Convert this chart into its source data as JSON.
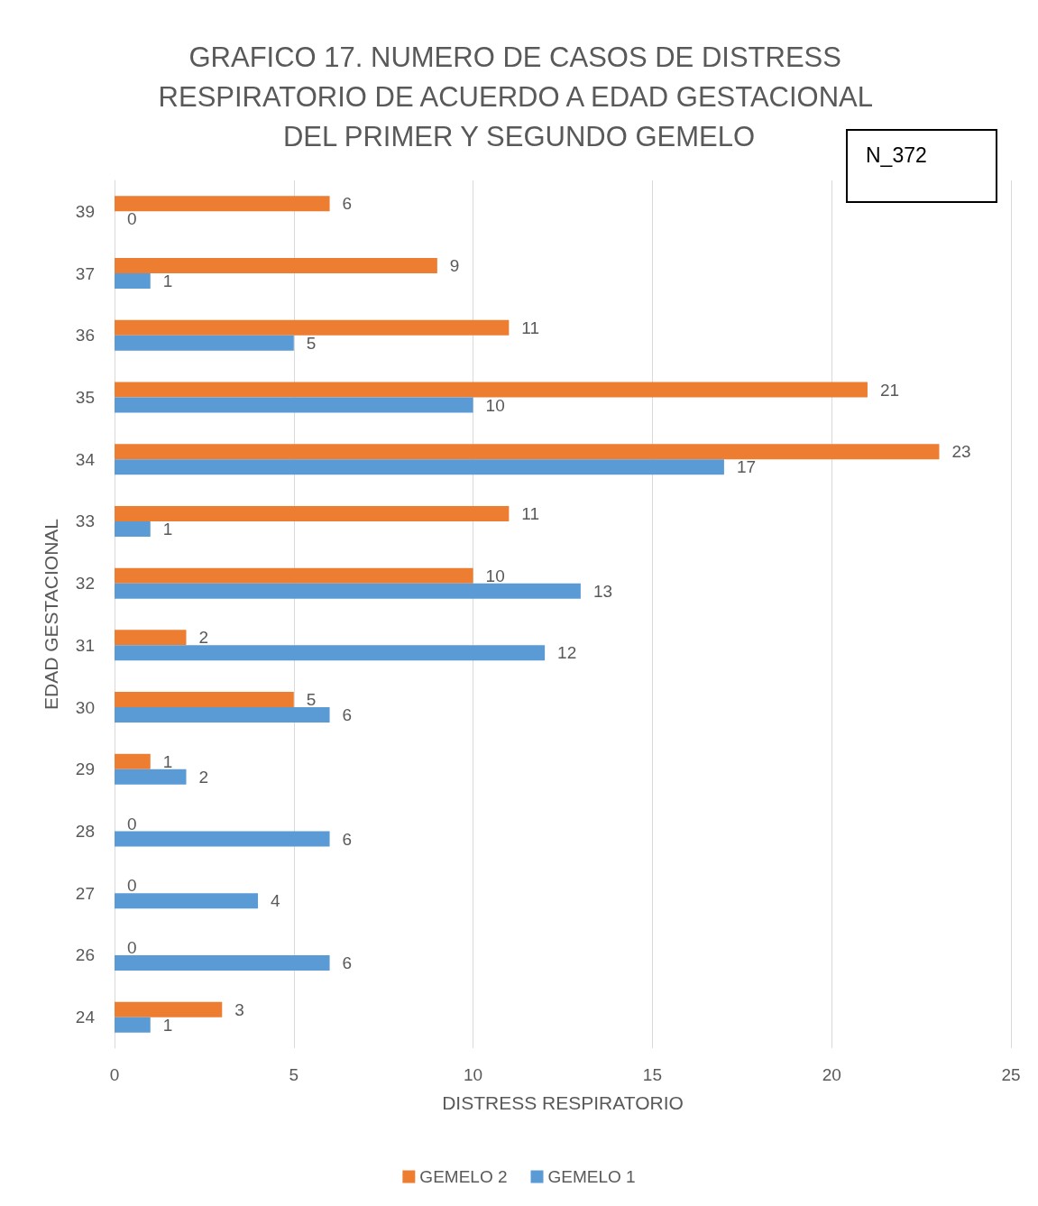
{
  "chart_data": {
    "type": "bar",
    "orientation": "horizontal",
    "title": "GRAFICO 17. NUMERO DE CASOS DE DISTRESS RESPIRATORIO DE ACUERDO A EDAD GESTACIONAL DEL PRIMER Y SEGUNDO GEMELO",
    "xlabel": "DISTRESS RESPIRATORIO",
    "ylabel": "EDAD GESTACIONAL",
    "annotations": [
      "N_372"
    ],
    "categories": [
      "39",
      "37",
      "36",
      "35",
      "34",
      "33",
      "32",
      "31",
      "30",
      "29",
      "28",
      "27",
      "26",
      "24"
    ],
    "series": [
      {
        "name": "GEMELO 2",
        "color": "#ed7d31",
        "values": [
          6,
          9,
          11,
          21,
          23,
          11,
          10,
          2,
          5,
          1,
          0,
          0,
          0,
          3
        ]
      },
      {
        "name": "GEMELO 1",
        "color": "#5b9bd5",
        "values": [
          0,
          1,
          5,
          10,
          17,
          1,
          13,
          12,
          6,
          2,
          6,
          4,
          6,
          1
        ]
      }
    ],
    "xlim": [
      0,
      25
    ],
    "xticks": [
      0,
      5,
      10,
      15,
      20,
      25
    ],
    "grid": "x",
    "legend": "bottom",
    "data_labels": true
  }
}
